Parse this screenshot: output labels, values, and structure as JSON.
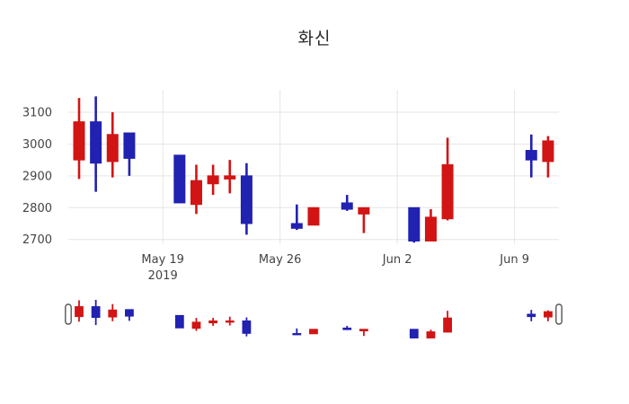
{
  "chart_data": {
    "type": "candlestick",
    "title": "화신",
    "legend": null,
    "grid": true,
    "rangeslider": true,
    "increasing_color": "#d21414",
    "decreasing_color": "#2121b2",
    "grid_color": "#e6e6e6",
    "tick_color": "#444444",
    "y_ticks": [
      2700,
      2800,
      2900,
      3000,
      3100
    ],
    "y_range": [
      2682,
      3172
    ],
    "x_ticks": [
      {
        "label": "May 19",
        "date": "2019-05-19"
      },
      {
        "label": "May 26",
        "date": "2019-05-26"
      },
      {
        "label": "Jun 2",
        "date": "2019-06-02"
      },
      {
        "label": "Jun 9",
        "date": "2019-06-09"
      }
    ],
    "x_year_label": "2019",
    "ohlc": [
      {
        "date": "2019-05-14",
        "open": 2950,
        "high": 3145,
        "low": 2890,
        "close": 3070
      },
      {
        "date": "2019-05-15",
        "open": 3070,
        "high": 3150,
        "low": 2850,
        "close": 2940
      },
      {
        "date": "2019-05-16",
        "open": 2945,
        "high": 3100,
        "low": 2895,
        "close": 3030
      },
      {
        "date": "2019-05-17",
        "open": 3035,
        "high": 3035,
        "low": 2900,
        "close": 2955
      },
      {
        "date": "2019-05-20",
        "open": 2965,
        "high": 2965,
        "low": 2815,
        "close": 2815
      },
      {
        "date": "2019-05-21",
        "open": 2810,
        "high": 2935,
        "low": 2780,
        "close": 2885
      },
      {
        "date": "2019-05-22",
        "open": 2875,
        "high": 2935,
        "low": 2840,
        "close": 2900
      },
      {
        "date": "2019-05-23",
        "open": 2890,
        "high": 2950,
        "low": 2845,
        "close": 2900
      },
      {
        "date": "2019-05-24",
        "open": 2900,
        "high": 2940,
        "low": 2715,
        "close": 2750
      },
      {
        "date": "2019-05-27",
        "open": 2750,
        "high": 2810,
        "low": 2730,
        "close": 2735
      },
      {
        "date": "2019-05-28",
        "open": 2745,
        "high": 2800,
        "low": 2745,
        "close": 2800
      },
      {
        "date": "2019-05-30",
        "open": 2815,
        "high": 2840,
        "low": 2790,
        "close": 2795
      },
      {
        "date": "2019-05-31",
        "open": 2780,
        "high": 2800,
        "low": 2720,
        "close": 2800
      },
      {
        "date": "2019-06-03",
        "open": 2800,
        "high": 2800,
        "low": 2690,
        "close": 2695
      },
      {
        "date": "2019-06-04",
        "open": 2695,
        "high": 2795,
        "low": 2695,
        "close": 2770
      },
      {
        "date": "2019-06-05",
        "open": 2765,
        "high": 3020,
        "low": 2760,
        "close": 2935
      },
      {
        "date": "2019-06-10",
        "open": 2980,
        "high": 3030,
        "low": 2895,
        "close": 2950
      },
      {
        "date": "2019-06-11",
        "open": 2945,
        "high": 3025,
        "low": 2895,
        "close": 3010
      }
    ]
  }
}
